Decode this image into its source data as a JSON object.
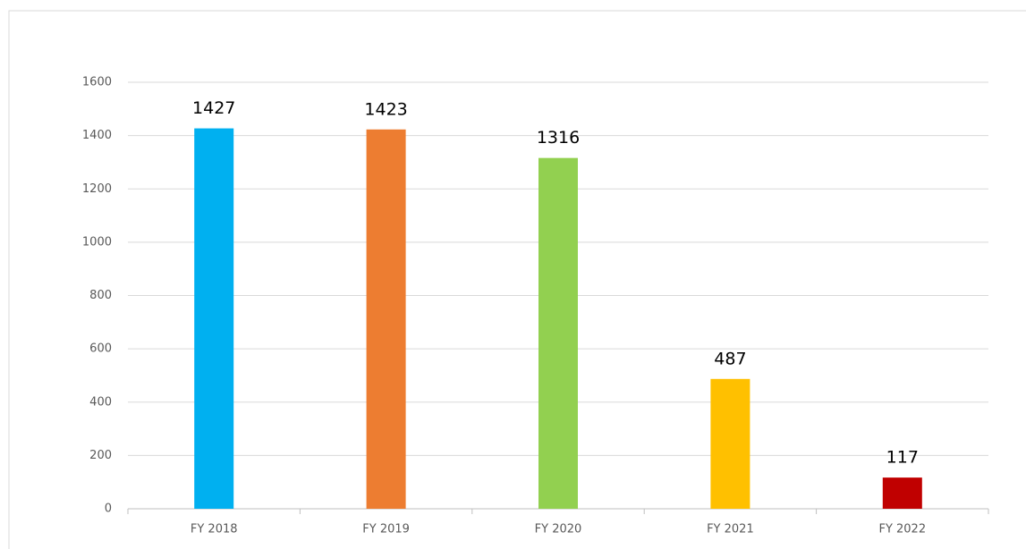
{
  "chart_data": {
    "type": "bar",
    "categories": [
      "FY 2018",
      "FY 2019",
      "FY 2020",
      "FY 2021",
      "FY 2022"
    ],
    "values": [
      1427,
      1423,
      1316,
      487,
      117
    ],
    "colors": [
      "#00b0f0",
      "#ed7d31",
      "#92d050",
      "#ffc000",
      "#c00000"
    ],
    "ylim": [
      0,
      1600
    ],
    "yticks": [
      0,
      200,
      400,
      600,
      800,
      1000,
      1200,
      1400,
      1600
    ],
    "grid": true
  }
}
